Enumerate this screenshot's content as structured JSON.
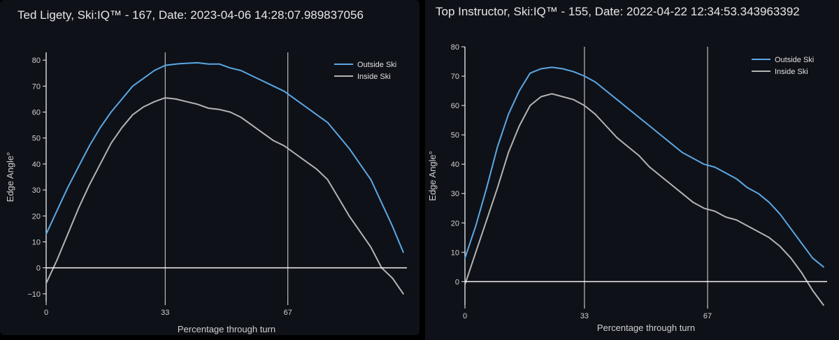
{
  "chart_data": [
    {
      "type": "line",
      "title": "Ted Ligety, Ski:IQ™ - 167, Date: 2023-04-06 14:28:07.989837056",
      "xlabel": "Percentage through turn",
      "ylabel": "Edge Angle°",
      "xlim": [
        0,
        100
      ],
      "ylim": [
        -13,
        83
      ],
      "xticks": [
        0,
        33,
        67
      ],
      "yticks": [
        -10,
        0,
        10,
        20,
        30,
        40,
        50,
        60,
        70,
        80
      ],
      "vlines": [
        33,
        67
      ],
      "hline": 0,
      "legend_position": "top-right",
      "series": [
        {
          "name": "Outside Ski",
          "color": "#5aa8e6",
          "x": [
            0,
            3,
            6,
            9,
            12,
            15,
            18,
            21,
            24,
            27,
            30,
            33,
            36,
            39,
            42,
            45,
            48,
            51,
            54,
            57,
            60,
            63,
            66,
            69,
            72,
            75,
            78,
            81,
            84,
            87,
            90,
            93,
            96,
            99
          ],
          "y": [
            13,
            22,
            31,
            39,
            47,
            54,
            60,
            65,
            70,
            73,
            76,
            78,
            78.5,
            78.8,
            79,
            78.5,
            78.5,
            77,
            76,
            74,
            72,
            70,
            68,
            65,
            62,
            59,
            56,
            51,
            46,
            40,
            34,
            25,
            16,
            6
          ]
        },
        {
          "name": "Inside Ski",
          "color": "#b4b4b4",
          "x": [
            0,
            3,
            6,
            9,
            12,
            15,
            18,
            21,
            24,
            27,
            30,
            33,
            36,
            39,
            42,
            45,
            48,
            51,
            54,
            57,
            60,
            63,
            66,
            69,
            72,
            75,
            78,
            81,
            84,
            87,
            90,
            93,
            96,
            99
          ],
          "y": [
            -6,
            3,
            13,
            23,
            32,
            40,
            48,
            54,
            59,
            62,
            64,
            65.5,
            65,
            64,
            63,
            61.5,
            61,
            60,
            58,
            55,
            52,
            49,
            47,
            44,
            41,
            38,
            34,
            27,
            20,
            14,
            8,
            0,
            -4,
            -10
          ]
        }
      ]
    },
    {
      "type": "line",
      "title": "Top Instructor, Ski:IQ™ - 155, Date: 2022-04-22 12:34:53.343963392",
      "xlabel": "Percentage through turn",
      "ylabel": "Edge Angle°",
      "xlim": [
        0,
        100
      ],
      "ylim": [
        -8,
        80
      ],
      "xticks": [
        0,
        33,
        67
      ],
      "yticks": [
        0,
        10,
        20,
        30,
        40,
        50,
        60,
        70,
        80
      ],
      "vlines": [
        33,
        67
      ],
      "hline": 0,
      "legend_position": "top-right",
      "series": [
        {
          "name": "Outside Ski",
          "color": "#5aa8e6",
          "x": [
            0,
            3,
            6,
            9,
            12,
            15,
            18,
            21,
            24,
            27,
            30,
            33,
            36,
            39,
            42,
            45,
            48,
            51,
            54,
            57,
            60,
            63,
            66,
            69,
            72,
            75,
            78,
            81,
            84,
            87,
            90,
            93,
            96,
            99
          ],
          "y": [
            8,
            19,
            32,
            46,
            57,
            65,
            71,
            72.5,
            73,
            72.5,
            71.5,
            70,
            68,
            65,
            62,
            59,
            56,
            53,
            50,
            47,
            44,
            42,
            40,
            39,
            37,
            35,
            32,
            30,
            27,
            23,
            18,
            13,
            8,
            5
          ]
        },
        {
          "name": "Inside Ski",
          "color": "#b4b4b4",
          "x": [
            0,
            3,
            6,
            9,
            12,
            15,
            18,
            21,
            24,
            27,
            30,
            33,
            36,
            39,
            42,
            45,
            48,
            51,
            54,
            57,
            60,
            63,
            66,
            69,
            72,
            75,
            78,
            81,
            84,
            87,
            90,
            93,
            96,
            99
          ],
          "y": [
            -1,
            10,
            21,
            32,
            44,
            53,
            60,
            63,
            64,
            63,
            62,
            60,
            57,
            53,
            49,
            46,
            43,
            39,
            36,
            33,
            30,
            27,
            25,
            24,
            22,
            21,
            19,
            17,
            15,
            12,
            8,
            3,
            -3,
            -8
          ]
        }
      ]
    }
  ]
}
